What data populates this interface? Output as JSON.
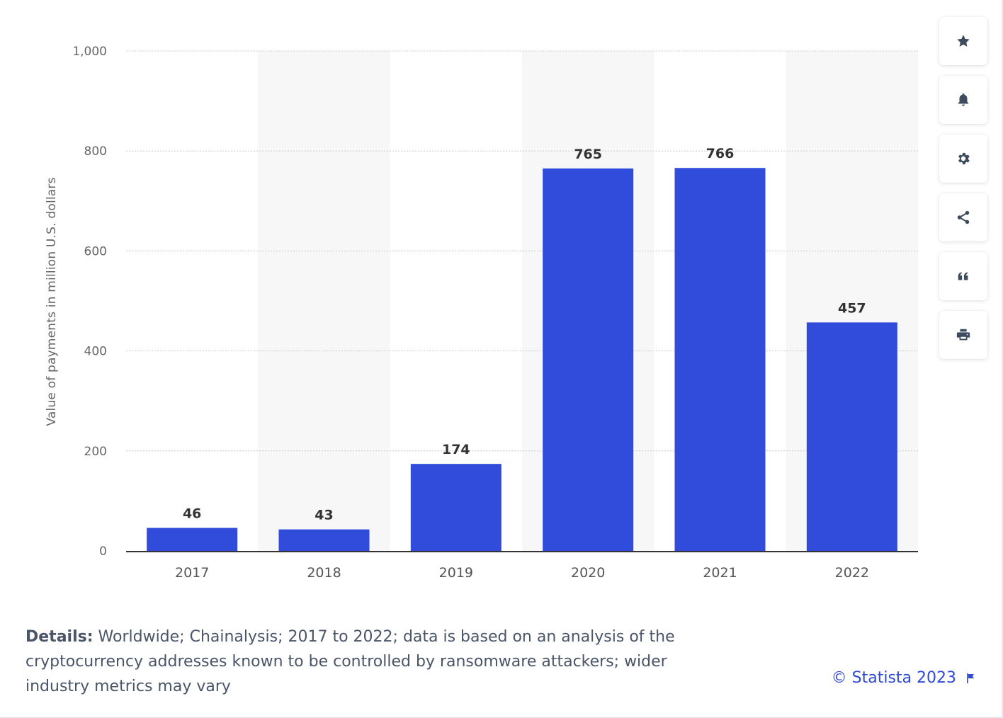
{
  "chart_data": {
    "type": "bar",
    "title": "",
    "xlabel": "",
    "ylabel": "Value of payments in million U.S. dollars",
    "categories": [
      "2017",
      "2018",
      "2019",
      "2020",
      "2021",
      "2022"
    ],
    "values": [
      46,
      43,
      174,
      765,
      766,
      457
    ],
    "ylim": [
      0,
      1000
    ],
    "yticks": [
      0,
      200,
      400,
      600,
      800,
      1000
    ],
    "ytick_labels": [
      "0",
      "200",
      "400",
      "600",
      "800",
      "1,000"
    ],
    "grid": true,
    "bar_color": "#314bdb"
  },
  "toolbar": {
    "buttons": [
      {
        "name": "favorite",
        "icon": "star-icon"
      },
      {
        "name": "notification",
        "icon": "bell-icon"
      },
      {
        "name": "settings",
        "icon": "gear-icon"
      },
      {
        "name": "share",
        "icon": "share-icon"
      },
      {
        "name": "cite",
        "icon": "quote-icon"
      },
      {
        "name": "print",
        "icon": "printer-icon"
      }
    ],
    "icon_color": "#3c4b5d"
  },
  "details": {
    "label": "Details:",
    "text": "Worldwide; Chainalysis; 2017 to 2022; data is based on an analysis of the cryptocurrency addresses known to be controlled by ransomware attackers; wider industry metrics may vary"
  },
  "credit": {
    "text": "© Statista 2023",
    "icon": "flag-icon",
    "color": "#2f4ad7"
  }
}
